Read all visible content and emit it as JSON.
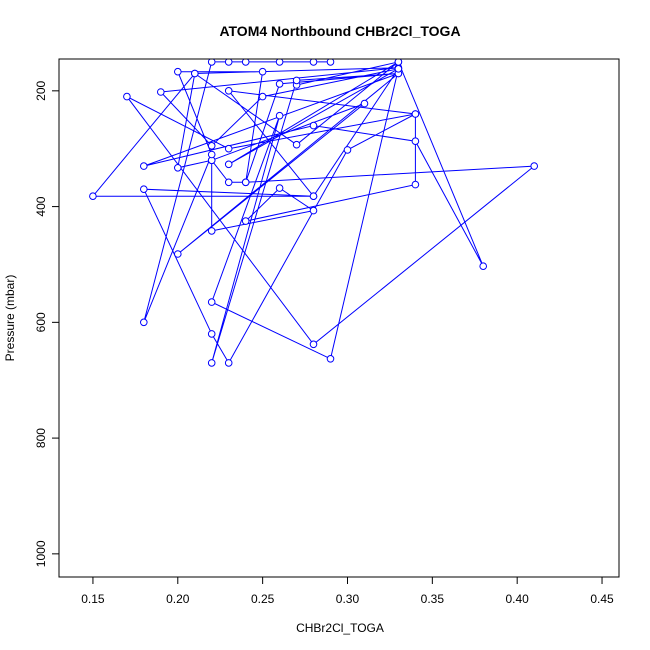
{
  "chart_data": {
    "type": "line",
    "title": "ATOM4 Northbound CHBr2Cl_TOGA",
    "xlabel": "CHBr2Cl_TOGA",
    "ylabel": "Pressure (mbar)",
    "xlim": [
      0.13,
      0.46
    ],
    "ylim": [
      1040,
      145
    ],
    "y_reversed": true,
    "x_ticks": [
      0.15,
      0.2,
      0.25,
      0.3,
      0.35,
      0.4,
      0.45
    ],
    "x_tick_labels": [
      "0.15",
      "0.20",
      "0.25",
      "0.30",
      "0.35",
      "0.40",
      "0.45"
    ],
    "y_ticks": [
      200,
      400,
      600,
      800,
      1000
    ],
    "y_tick_labels": [
      "200",
      "400",
      "600",
      "800",
      "1000"
    ],
    "color": "#0000ff",
    "marker": "open-circle",
    "series": [
      {
        "x": [
          0.27,
          0.33,
          0.38,
          0.34,
          0.28,
          0.18,
          0.33,
          0.26,
          0.24,
          0.23,
          0.22,
          0.2,
          0.21,
          0.33,
          0.19,
          0.22,
          0.25,
          0.33,
          0.28,
          0.23,
          0.34,
          0.34,
          0.24,
          0.26,
          0.28,
          0.22,
          0.22,
          0.31,
          0.2,
          0.33,
          0.27,
          0.22,
          0.26,
          0.22,
          0.29,
          0.33,
          0.23,
          0.33,
          0.27,
          0.21,
          0.15,
          0.28,
          0.18,
          0.22,
          0.23,
          0.3,
          0.34,
          0.23,
          0.17,
          0.28,
          0.41,
          0.24,
          0.25,
          0.2,
          0.22,
          0.18,
          0.22,
          0.23,
          0.26,
          0.24,
          0.28,
          0.29
        ],
        "y": [
          190,
          150,
          503,
          287,
          260,
          330,
          170,
          188,
          358,
          358,
          320,
          333,
          170,
          160,
          202,
          295,
          210,
          162,
          382,
          200,
          240,
          362,
          425,
          368,
          407,
          442,
          320,
          222,
          482,
          170,
          182,
          670,
          243,
          565,
          663,
          162,
          327,
          150,
          293,
          170,
          382,
          382,
          370,
          620,
          670,
          302,
          240,
          300,
          210,
          638,
          330,
          358,
          167,
          167,
          310,
          600,
          150,
          150,
          150,
          150,
          150,
          150
        ]
      }
    ]
  }
}
